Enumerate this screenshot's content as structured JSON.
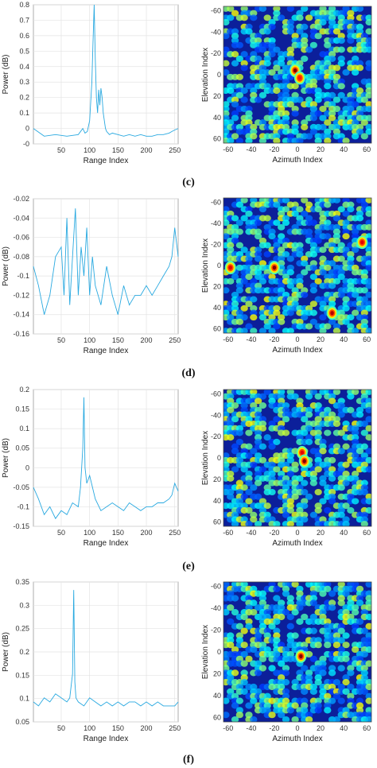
{
  "panels": [
    {
      "label": "",
      "line": {
        "ylabel": "Power (dB)",
        "xlabel": "Range Index"
      },
      "map": {
        "ylabel": "Elevation Index",
        "xlabel": "Azimuth Index"
      }
    },
    {
      "label": "(c)",
      "line": {
        "ylabel": "Power (dB)",
        "xlabel": "Range Index"
      },
      "map": {
        "ylabel": "Elevation Index",
        "xlabel": "Azimuth Index"
      }
    },
    {
      "label": "(d)",
      "line": {
        "ylabel": "Power (dB)",
        "xlabel": "Range Index"
      },
      "map": {
        "ylabel": "Elevation Index",
        "xlabel": "Azimuth Index"
      }
    },
    {
      "label": "(e)",
      "line": {
        "ylabel": "Power (dB)",
        "xlabel": "Range Index"
      },
      "map": {
        "ylabel": "Elevation Index",
        "xlabel": "Azimuth Index"
      }
    },
    {
      "label": "(f)"
    }
  ],
  "chart_data": [
    {
      "type": "line",
      "xlabel": "Range Index",
      "ylabel": "Power (dB)",
      "xlim": [
        1,
        256
      ],
      "ylim": [
        -0.1,
        0.8
      ],
      "xticks": [
        "50",
        "100",
        "150",
        "200",
        "250"
      ],
      "yticks": [
        "0.8",
        "0.7",
        "0.6",
        "0.5",
        "0.4",
        "0.3",
        "0.2",
        "0.1",
        "0",
        "-0"
      ],
      "color": "#29a9e0",
      "x": [
        1,
        20,
        40,
        60,
        80,
        88,
        92,
        96,
        100,
        104,
        106,
        108,
        110,
        112,
        114,
        116,
        118,
        120,
        122,
        124,
        126,
        128,
        130,
        135,
        140,
        150,
        160,
        170,
        180,
        190,
        200,
        210,
        220,
        230,
        240,
        245,
        250,
        256
      ],
      "y": [
        0.0,
        -0.05,
        -0.04,
        -0.05,
        -0.04,
        0.0,
        -0.03,
        -0.02,
        0.05,
        0.3,
        0.55,
        0.8,
        0.45,
        0.2,
        0.1,
        0.25,
        0.15,
        0.26,
        0.2,
        0.1,
        0.05,
        0.0,
        -0.02,
        -0.04,
        -0.03,
        -0.04,
        -0.05,
        -0.04,
        -0.05,
        -0.04,
        -0.05,
        -0.05,
        -0.04,
        -0.04,
        -0.03,
        -0.02,
        -0.01,
        0.0
      ]
    },
    {
      "type": "heatmap",
      "xlabel": "Azimuth Index",
      "ylabel": "Elevation Index",
      "xlim": [
        -64,
        64
      ],
      "ylim": [
        -64,
        64
      ],
      "xticks": [
        "-60",
        "-40",
        "-20",
        "0",
        "20",
        "40",
        "60"
      ],
      "yticks": [
        "-60",
        "-40",
        "-20",
        "0",
        "20",
        "40",
        "60"
      ],
      "colormap": "jet",
      "hotspots": [
        {
          "az": -2,
          "el": -4,
          "level": 1.0
        },
        {
          "az": 2,
          "el": 3,
          "level": 0.85
        }
      ]
    },
    {
      "type": "line",
      "xlabel": "Range Index",
      "ylabel": "Power (dB)",
      "xlim": [
        1,
        256
      ],
      "ylim": [
        -0.16,
        -0.02
      ],
      "xticks": [
        "50",
        "100",
        "150",
        "200",
        "250"
      ],
      "yticks": [
        "-0.02",
        "-0.04",
        "-0.06",
        "-0.08",
        "-0.1",
        "-0.12",
        "-0.14",
        "-0.16"
      ],
      "color": "#29a9e0",
      "x": [
        1,
        10,
        20,
        30,
        40,
        50,
        55,
        60,
        65,
        70,
        75,
        80,
        85,
        90,
        95,
        100,
        105,
        110,
        120,
        130,
        140,
        150,
        160,
        170,
        180,
        190,
        200,
        210,
        220,
        230,
        240,
        245,
        250,
        256
      ],
      "y": [
        -0.09,
        -0.11,
        -0.14,
        -0.12,
        -0.08,
        -0.07,
        -0.12,
        -0.04,
        -0.13,
        -0.08,
        -0.03,
        -0.12,
        -0.07,
        -0.1,
        -0.05,
        -0.12,
        -0.08,
        -0.11,
        -0.13,
        -0.09,
        -0.12,
        -0.14,
        -0.11,
        -0.13,
        -0.12,
        -0.12,
        -0.11,
        -0.12,
        -0.11,
        -0.1,
        -0.09,
        -0.08,
        -0.05,
        -0.08
      ]
    },
    {
      "type": "heatmap",
      "xlabel": "Azimuth Index",
      "ylabel": "Elevation Index",
      "xlim": [
        -64,
        64
      ],
      "ylim": [
        -64,
        64
      ],
      "xticks": [
        "-60",
        "-40",
        "-20",
        "0",
        "20",
        "40",
        "60"
      ],
      "yticks": [
        "-60",
        "-40",
        "-20",
        "0",
        "20",
        "40",
        "60"
      ],
      "colormap": "jet",
      "hotspots": [
        {
          "az": -20,
          "el": 2,
          "level": 1.0
        },
        {
          "az": 30,
          "el": 45,
          "level": 0.95
        },
        {
          "az": 56,
          "el": -22,
          "level": 0.9
        },
        {
          "az": -58,
          "el": 2,
          "level": 0.9
        }
      ]
    },
    {
      "type": "line",
      "xlabel": "Range Index",
      "ylabel": "Power (dB)",
      "xlim": [
        1,
        256
      ],
      "ylim": [
        -0.15,
        0.2
      ],
      "xticks": [
        "50",
        "100",
        "150",
        "200",
        "250"
      ],
      "yticks": [
        "0.2",
        "0.15",
        "0.1",
        "0.05",
        "0",
        "-0.05",
        "-0.1",
        "-0.15"
      ],
      "color": "#29a9e0",
      "x": [
        1,
        10,
        20,
        30,
        40,
        50,
        60,
        70,
        80,
        84,
        88,
        90,
        92,
        95,
        100,
        110,
        120,
        130,
        140,
        150,
        160,
        170,
        180,
        190,
        200,
        210,
        220,
        230,
        240,
        245,
        250,
        256
      ],
      "y": [
        -0.05,
        -0.08,
        -0.12,
        -0.1,
        -0.13,
        -0.11,
        -0.12,
        -0.09,
        -0.1,
        -0.05,
        0.05,
        0.18,
        0.0,
        -0.04,
        -0.02,
        -0.08,
        -0.11,
        -0.1,
        -0.09,
        -0.1,
        -0.11,
        -0.09,
        -0.1,
        -0.11,
        -0.1,
        -0.1,
        -0.09,
        -0.09,
        -0.08,
        -0.07,
        -0.04,
        -0.06
      ]
    },
    {
      "type": "heatmap",
      "xlabel": "Azimuth Index",
      "ylabel": "Elevation Index",
      "xlim": [
        -64,
        64
      ],
      "ylim": [
        -64,
        64
      ],
      "xticks": [
        "-60",
        "-40",
        "-20",
        "0",
        "20",
        "40",
        "60"
      ],
      "yticks": [
        "-60",
        "-40",
        "-20",
        "0",
        "20",
        "40",
        "60"
      ],
      "colormap": "jet",
      "hotspots": [
        {
          "az": 4,
          "el": -5,
          "level": 0.9
        },
        {
          "az": 6,
          "el": 3,
          "level": 1.0
        }
      ]
    },
    {
      "type": "line",
      "xlabel": "Range Index",
      "ylabel": "Power (dB)",
      "xlim": [
        1,
        256
      ],
      "ylim": [
        0.0,
        0.35
      ],
      "xticks": [
        "50",
        "100",
        "150",
        "200",
        "250"
      ],
      "yticks": [
        "0.35",
        "0.3",
        "0.25",
        "0.2",
        "0.15",
        "0.1",
        "0.05"
      ],
      "color": "#29a9e0",
      "x": [
        1,
        10,
        20,
        30,
        40,
        50,
        60,
        65,
        70,
        72,
        74,
        76,
        80,
        90,
        100,
        110,
        120,
        130,
        140,
        150,
        160,
        170,
        180,
        190,
        200,
        210,
        220,
        230,
        240,
        250,
        256
      ],
      "y": [
        0.05,
        0.04,
        0.06,
        0.05,
        0.07,
        0.06,
        0.05,
        0.06,
        0.12,
        0.33,
        0.1,
        0.06,
        0.05,
        0.04,
        0.06,
        0.05,
        0.04,
        0.05,
        0.04,
        0.05,
        0.04,
        0.05,
        0.05,
        0.04,
        0.05,
        0.04,
        0.05,
        0.04,
        0.04,
        0.04,
        0.05
      ]
    },
    {
      "type": "heatmap",
      "xlabel": "Azimuth Index",
      "ylabel": "Elevation Index",
      "xlim": [
        -64,
        64
      ],
      "ylim": [
        -64,
        64
      ],
      "xticks": [
        "-60",
        "-40",
        "-20",
        "0",
        "20",
        "40",
        "60"
      ],
      "yticks": [
        "-60",
        "-40",
        "-20",
        "0",
        "20",
        "40",
        "60"
      ],
      "colormap": "jet",
      "hotspots": [
        {
          "az": 3,
          "el": 4,
          "level": 1.0
        }
      ]
    }
  ]
}
